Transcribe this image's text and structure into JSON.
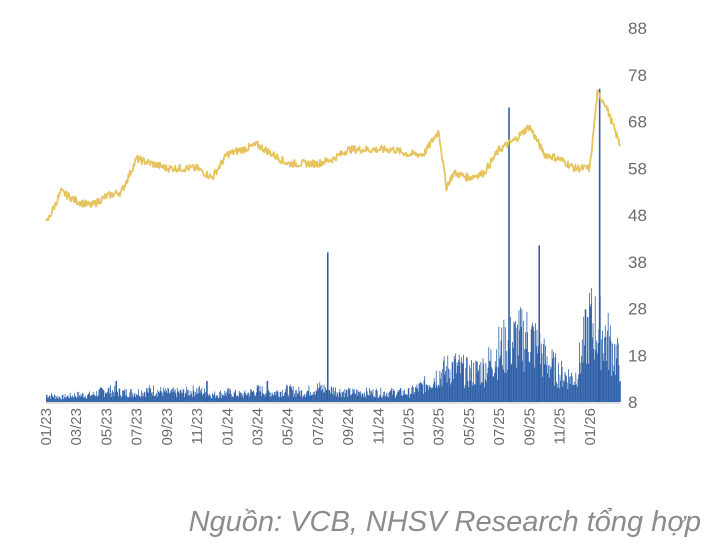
{
  "chart_data": {
    "type": "bar+line",
    "title": "",
    "xlabel": "",
    "ylabel": "",
    "ylim": [
      8,
      88
    ],
    "yticks": [
      8,
      18,
      28,
      38,
      48,
      58,
      68,
      78,
      88
    ],
    "xticks": [
      "01/23",
      "03/23",
      "05/23",
      "07/23",
      "09/23",
      "11/23",
      "01/24",
      "03/24",
      "05/24",
      "07/24",
      "09/24",
      "11/24",
      "01/25",
      "03/25",
      "05/25",
      "07/25",
      "09/25",
      "11/25",
      "01/26"
    ],
    "x_range": [
      "01/23",
      "03/26"
    ],
    "grid": false,
    "legend": "none",
    "series": [
      {
        "type": "line",
        "color": "#e6c35c",
        "x": [
          "01/23",
          "02/23",
          "03/23",
          "04/23",
          "05/23",
          "06/23",
          "07/23",
          "08/23",
          "09/23",
          "10/23",
          "11/23",
          "12/23",
          "01/24",
          "02/24",
          "03/24",
          "04/24",
          "05/24",
          "06/24",
          "07/24",
          "08/24",
          "09/24",
          "10/24",
          "11/24",
          "12/24",
          "01/25",
          "02/25",
          "03/25",
          "03/25b",
          "04/25",
          "05/25",
          "06/25",
          "07/25",
          "08/25",
          "09/25",
          "10/25",
          "11/25",
          "12/25",
          "01/26",
          "01/26b",
          "02/26",
          "03/26"
        ],
        "values": [
          46,
          53,
          51,
          50,
          52,
          53,
          60,
          59,
          58,
          58,
          58,
          56,
          61,
          62,
          63,
          61,
          59,
          59,
          59,
          60,
          62,
          62,
          62,
          62,
          61,
          61,
          66,
          54,
          57,
          56,
          57,
          62,
          64,
          67,
          61,
          60,
          58,
          58,
          74,
          72,
          63
        ]
      },
      {
        "type": "bar",
        "color": "#2c5fa8",
        "x": [
          "01/23",
          "02/23",
          "03/23",
          "04/23",
          "05/23",
          "06/23",
          "07/23",
          "08/23",
          "09/23",
          "10/23",
          "11/23",
          "12/23",
          "01/24",
          "02/24",
          "03/24",
          "04/24",
          "05/24",
          "06/24",
          "07/24",
          "08/24",
          "09/24",
          "10/24",
          "11/24",
          "12/24",
          "01/25",
          "02/25",
          "03/25",
          "04/25",
          "05/25",
          "06/25",
          "07/25",
          "08/25",
          "09/25",
          "10/25",
          "11/25",
          "12/25",
          "01/26",
          "02/26",
          "03/26"
        ],
        "values": [
          9.5,
          9.0,
          9.5,
          9.5,
          10.5,
          10.0,
          10.0,
          10.5,
          10.0,
          10.0,
          10.5,
          9.5,
          10.0,
          9.5,
          10.5,
          10.0,
          10.5,
          10.0,
          11.0,
          10.5,
          10.0,
          10.0,
          10.0,
          10.0,
          10.0,
          11.5,
          14.0,
          15.5,
          14.0,
          15.0,
          19.0,
          21.0,
          22.0,
          17.0,
          14.0,
          13.0,
          25.0,
          22.0,
          16.0
        ],
        "spikes": [
          {
            "x": "05/23",
            "value": 12.5
          },
          {
            "x": "11/23",
            "value": 12.5
          },
          {
            "x": "03/24",
            "value": 12.5
          },
          {
            "x": "07/24",
            "value": 40.0
          },
          {
            "x": "07/25",
            "value": 71.0
          },
          {
            "x": "09/25",
            "value": 41.5
          },
          {
            "x": "01/26",
            "value": 75.0
          }
        ]
      }
    ]
  },
  "source_note": "Nguồn: VCB, NHSV Research tổng hợp"
}
